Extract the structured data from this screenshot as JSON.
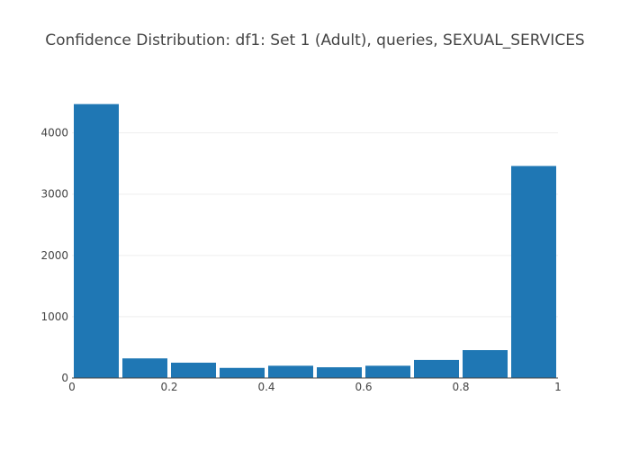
{
  "chart_data": {
    "type": "bar",
    "title": "Confidence Distribution: df1: Set 1 (Adult), queries, SEXUAL_SERVICES",
    "xlabel": "",
    "ylabel": "",
    "x_bins": [
      [
        0.0,
        0.1
      ],
      [
        0.1,
        0.2
      ],
      [
        0.2,
        0.3
      ],
      [
        0.3,
        0.4
      ],
      [
        0.4,
        0.5
      ],
      [
        0.5,
        0.6
      ],
      [
        0.6,
        0.7
      ],
      [
        0.7,
        0.8
      ],
      [
        0.8,
        0.9
      ],
      [
        0.9,
        1.0
      ]
    ],
    "values": [
      4470,
      320,
      250,
      165,
      200,
      175,
      200,
      295,
      455,
      3460
    ],
    "xlim": [
      0,
      1
    ],
    "ylim": [
      0,
      4700
    ],
    "x_ticks": [
      0,
      0.2,
      0.4,
      0.6,
      0.8,
      1
    ],
    "x_tick_labels": [
      "0",
      "0.2",
      "0.4",
      "0.6",
      "0.8",
      "1"
    ],
    "y_ticks": [
      0,
      1000,
      2000,
      3000,
      4000
    ],
    "y_tick_labels": [
      "0",
      "1000",
      "2000",
      "3000",
      "4000"
    ],
    "bar_color": "#1f77b4",
    "grid": true,
    "legend": "none"
  }
}
